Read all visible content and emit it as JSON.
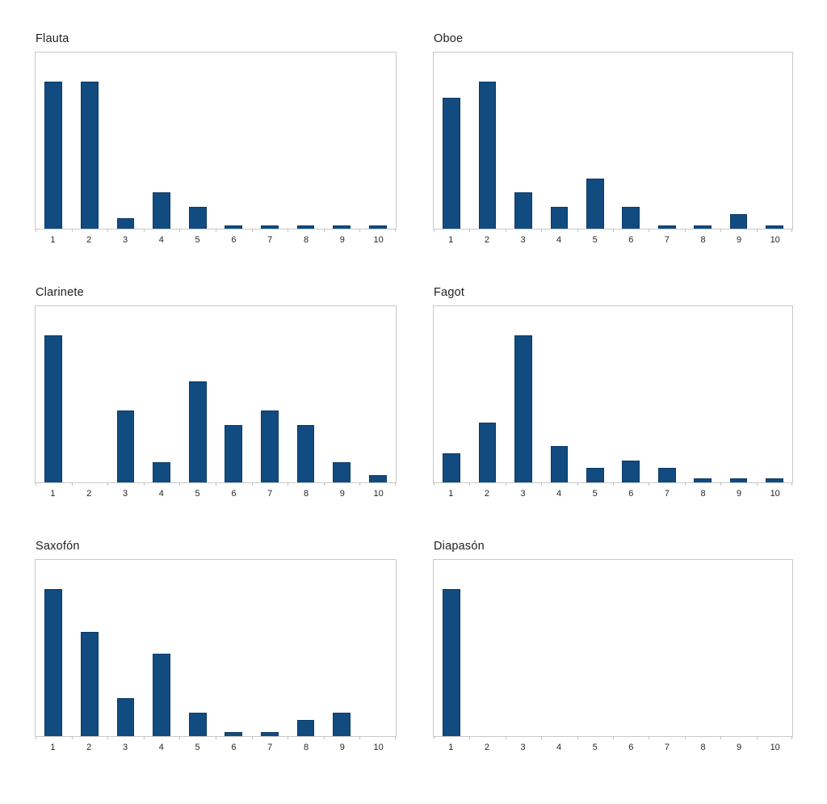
{
  "figure": {
    "description": "Six bar charts of relative harmonic amplitudes (no y-axis shown); values estimated as percent of each panel's tallest bar",
    "background": "#ffffff",
    "accent_color": "#124b80",
    "bar_border_color": "#0b3a66",
    "frame_color": "#c9c9c9",
    "tick_color": "#c2c2c2",
    "title_color": "#1f1f1f",
    "label_color": "#262626"
  },
  "chart_data": [
    {
      "type": "bar",
      "title": "Flauta",
      "categories": [
        "1",
        "2",
        "3",
        "4",
        "5",
        "6",
        "7",
        "8",
        "9",
        "10"
      ],
      "values": [
        100,
        100,
        7,
        25,
        15,
        2,
        2,
        2,
        2,
        2
      ],
      "xlabel": "",
      "ylabel": "",
      "ylim": [
        0,
        120
      ],
      "y_axis_shown": false,
      "grid": false,
      "legend": false
    },
    {
      "type": "bar",
      "title": "Oboe",
      "categories": [
        "1",
        "2",
        "3",
        "4",
        "5",
        "6",
        "7",
        "8",
        "9",
        "10"
      ],
      "values": [
        89,
        100,
        25,
        15,
        34,
        15,
        2,
        2,
        10,
        2
      ],
      "xlabel": "",
      "ylabel": "",
      "ylim": [
        0,
        120
      ],
      "y_axis_shown": false,
      "grid": false,
      "legend": false
    },
    {
      "type": "bar",
      "title": "Clarinete",
      "categories": [
        "1",
        "2",
        "3",
        "4",
        "5",
        "6",
        "7",
        "8",
        "9",
        "10"
      ],
      "values": [
        100,
        0,
        49,
        14,
        69,
        39,
        49,
        39,
        14,
        5
      ],
      "xlabel": "",
      "ylabel": "",
      "ylim": [
        0,
        120
      ],
      "y_axis_shown": false,
      "grid": false,
      "legend": false
    },
    {
      "type": "bar",
      "title": "Fagot",
      "categories": [
        "1",
        "2",
        "3",
        "4",
        "5",
        "6",
        "7",
        "8",
        "9",
        "10"
      ],
      "values": [
        20,
        41,
        100,
        25,
        10,
        15,
        10,
        3,
        3,
        3
      ],
      "xlabel": "",
      "ylabel": "",
      "ylim": [
        0,
        120
      ],
      "y_axis_shown": false,
      "grid": false,
      "legend": false
    },
    {
      "type": "bar",
      "title": "Saxofón",
      "categories": [
        "1",
        "2",
        "3",
        "4",
        "5",
        "6",
        "7",
        "8",
        "9",
        "10"
      ],
      "values": [
        100,
        71,
        26,
        56,
        16,
        3,
        3,
        11,
        16,
        0
      ],
      "xlabel": "",
      "ylabel": "",
      "ylim": [
        0,
        120
      ],
      "y_axis_shown": false,
      "grid": false,
      "legend": false
    },
    {
      "type": "bar",
      "title": "Diapasón",
      "categories": [
        "1",
        "2",
        "3",
        "4",
        "5",
        "6",
        "7",
        "8",
        "9",
        "10"
      ],
      "values": [
        100,
        0,
        0,
        0,
        0,
        0,
        0,
        0,
        0,
        0
      ],
      "xlabel": "",
      "ylabel": "",
      "ylim": [
        0,
        120
      ],
      "y_axis_shown": false,
      "grid": false,
      "legend": false
    }
  ]
}
